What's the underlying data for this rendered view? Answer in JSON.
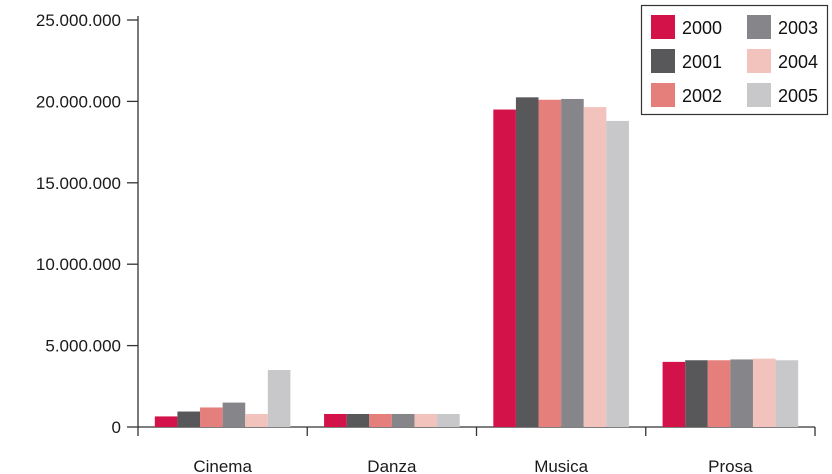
{
  "chart_data": {
    "type": "bar",
    "title": "",
    "xlabel": "",
    "ylabel": "",
    "categories": [
      "Cinema",
      "Danza",
      "Musica",
      "Prosa"
    ],
    "ylim": [
      0,
      25000000
    ],
    "yticks": [
      0,
      5000000,
      10000000,
      15000000,
      20000000,
      25000000
    ],
    "ytick_labels": [
      "0",
      "5.000.000",
      "10.000.000",
      "15.000.000",
      "20.000.000",
      "25.000.000"
    ],
    "grid": false,
    "legend_position": "top-right",
    "series": [
      {
        "name": "2000",
        "color": "#d4124a",
        "values": [
          650000,
          800000,
          19500000,
          4000000
        ]
      },
      {
        "name": "2001",
        "color": "#58585a",
        "values": [
          950000,
          800000,
          20250000,
          4100000
        ]
      },
      {
        "name": "2002",
        "color": "#e57f7c",
        "values": [
          1200000,
          800000,
          20100000,
          4100000
        ]
      },
      {
        "name": "2003",
        "color": "#86868a",
        "values": [
          1500000,
          800000,
          20150000,
          4150000
        ]
      },
      {
        "name": "2004",
        "color": "#f2c2bd",
        "values": [
          800000,
          800000,
          19650000,
          4200000
        ]
      },
      {
        "name": "2005",
        "color": "#c8c8ca",
        "values": [
          3500000,
          800000,
          18800000,
          4100000
        ]
      }
    ]
  }
}
